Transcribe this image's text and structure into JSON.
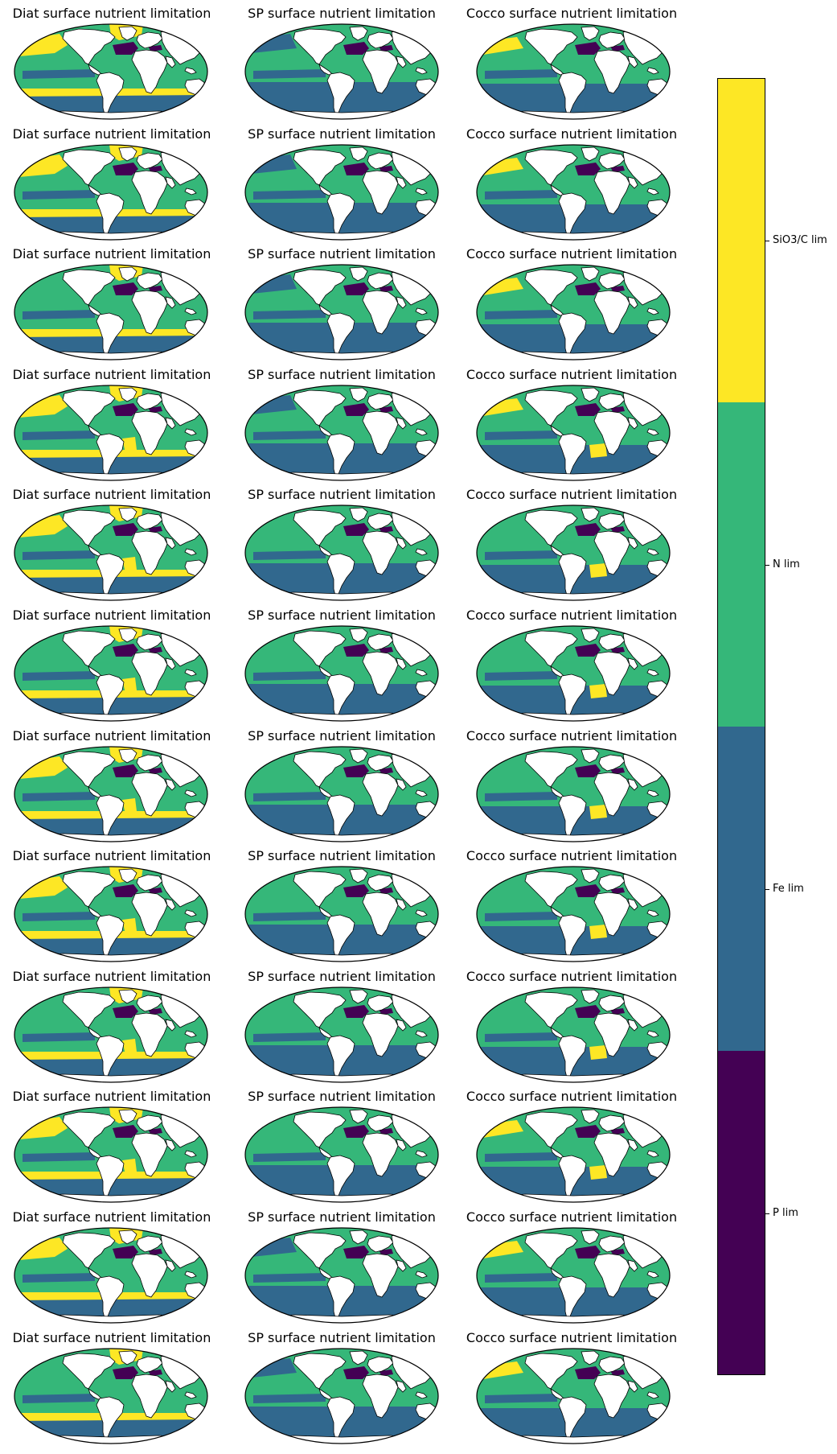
{
  "chart_data": {
    "type": "heatmap",
    "layout": {
      "rows": 12,
      "cols": 3
    },
    "column_titles": [
      "Diat surface nutrient limitation",
      "SP surface nutrient limitation",
      "Cocco surface nutrient limitation"
    ],
    "colorbar": {
      "orientation": "vertical",
      "categories": [
        {
          "label": "P lim",
          "color": "#440154"
        },
        {
          "label": "Fe lim",
          "color": "#31688e"
        },
        {
          "label": "N lim",
          "color": "#35b779"
        },
        {
          "label": "SiO3/C lim",
          "color": "#fde725"
        }
      ]
    }
  }
}
